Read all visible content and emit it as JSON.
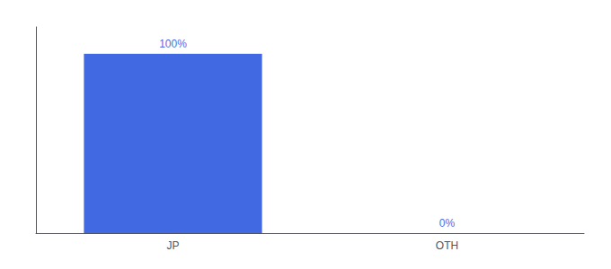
{
  "chart_data": {
    "type": "bar",
    "categories": [
      "JP",
      "OTH"
    ],
    "values": [
      100,
      0
    ],
    "value_labels": [
      "100%",
      "0%"
    ],
    "color": "#4169e1",
    "ylim": [
      0,
      115
    ],
    "data_labels": true,
    "tick_labels": "x",
    "grid": false
  }
}
